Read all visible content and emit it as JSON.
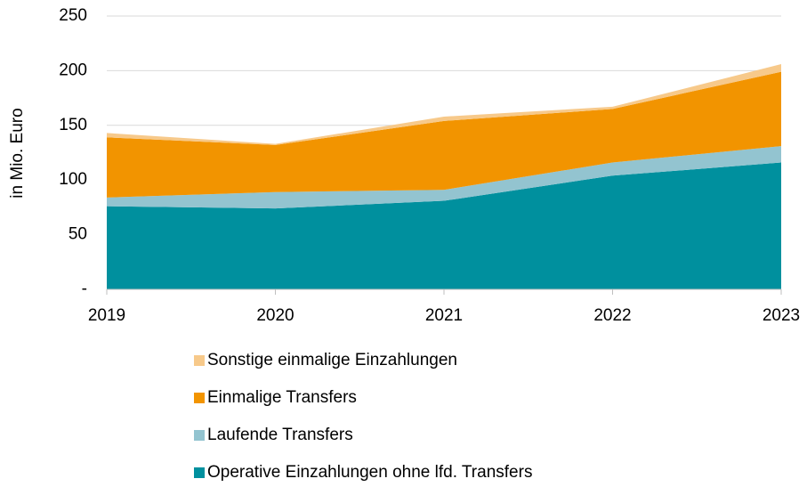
{
  "chart_data": {
    "type": "stacked_area",
    "y_label": "in Mio. Euro",
    "categories": [
      "2019",
      "2020",
      "2021",
      "2022",
      "2023"
    ],
    "series": [
      {
        "name": "Operative Einzahlungen ohne lfd. Transfers",
        "color": "#00909e",
        "values": [
          76,
          74,
          81,
          104,
          116
        ]
      },
      {
        "name": "Laufende Transfers",
        "color": "#93c4d0",
        "values": [
          8,
          15,
          10,
          12,
          15
        ]
      },
      {
        "name": "Einmalige Transfers",
        "color": "#f29400",
        "values": [
          55,
          43,
          63,
          49,
          68
        ]
      },
      {
        "name": "Sonstige einmalige Einzahlungen",
        "color": "#f7c98a",
        "values": [
          4,
          1,
          4,
          2,
          7
        ]
      }
    ],
    "ylim": [
      0,
      250
    ],
    "yticks": [
      {
        "value": 0,
        "label": "-"
      },
      50,
      100,
      150,
      200,
      250
    ],
    "grid": true,
    "legend": "bottom"
  }
}
